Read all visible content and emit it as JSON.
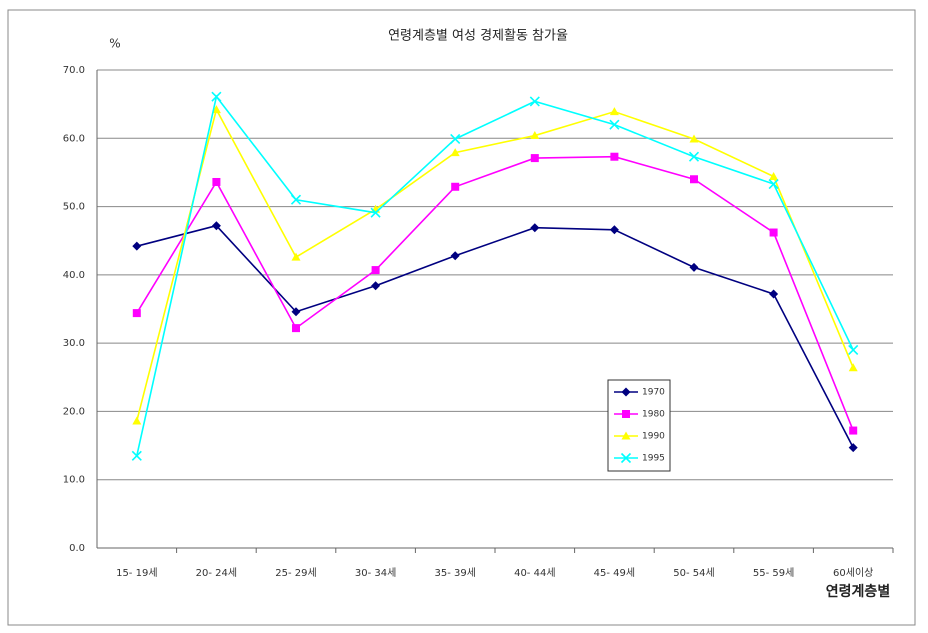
{
  "chart_data": {
    "type": "line",
    "title": "연령계층별 여성 경제활동 참가율",
    "y_label": "%",
    "x_label": "연령계층별",
    "categories": [
      "15- 19세",
      "20- 24세",
      "25- 29세",
      "30- 34세",
      "35- 39세",
      "40- 44세",
      "45- 49세",
      "50- 54세",
      "55- 59세",
      "60세이상"
    ],
    "series": [
      {
        "name": "1970",
        "color": "#000080",
        "marker": "diamond",
        "values": [
          44.2,
          47.2,
          34.6,
          38.4,
          42.8,
          46.9,
          46.6,
          41.1,
          37.2,
          14.7
        ]
      },
      {
        "name": "1980",
        "color": "#ff00ff",
        "marker": "square",
        "values": [
          34.4,
          53.6,
          32.2,
          40.7,
          52.9,
          57.1,
          57.3,
          54.0,
          46.2,
          17.2
        ]
      },
      {
        "name": "1990",
        "color": "#ffff00",
        "marker": "triangle",
        "values": [
          18.6,
          64.2,
          42.6,
          49.6,
          57.9,
          60.4,
          63.9,
          59.9,
          54.4,
          26.4
        ]
      },
      {
        "name": "1995",
        "color": "#00ffff",
        "marker": "x",
        "values": [
          13.5,
          66.1,
          51.0,
          49.1,
          59.9,
          65.4,
          62.0,
          57.3,
          53.3,
          29.0
        ]
      }
    ],
    "ylim": [
      0,
      70
    ],
    "yticks": [
      {
        "value": 0,
        "label": "0.0"
      },
      {
        "value": 10,
        "label": "10.0"
      },
      {
        "value": 20,
        "label": "20.0"
      },
      {
        "value": 30,
        "label": "30.0"
      },
      {
        "value": 40,
        "label": "40.0"
      },
      {
        "value": 50,
        "label": "50.0"
      },
      {
        "value": 60,
        "label": "60.0"
      },
      {
        "value": 70,
        "label": "70.0"
      }
    ],
    "grid": true
  }
}
